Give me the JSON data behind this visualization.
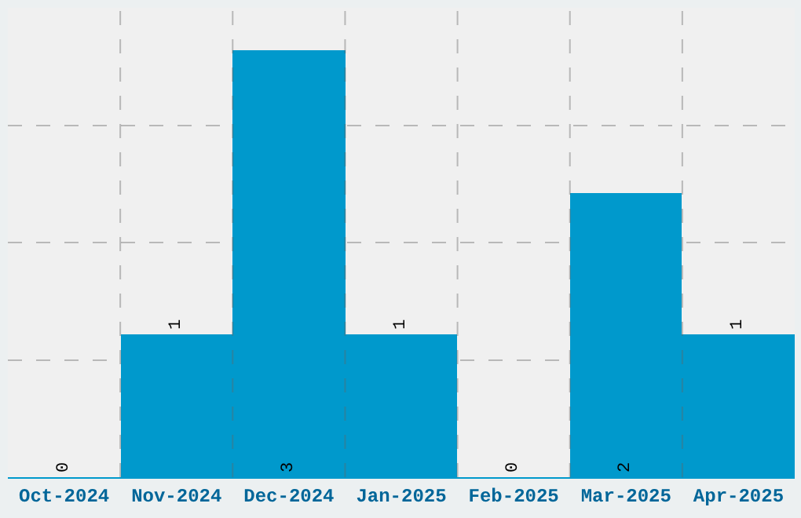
{
  "chart_data": {
    "type": "bar",
    "categories": [
      "Oct-2024",
      "Nov-2024",
      "Dec-2024",
      "Jan-2025",
      "Feb-2025",
      "Mar-2025",
      "Apr-2025"
    ],
    "values": [
      0,
      1,
      3,
      1,
      0,
      2,
      1
    ],
    "color": "#0099cc",
    "ylim": [
      0,
      3.3
    ],
    "yticks": [
      {
        "value": 0.825,
        "label": null
      },
      {
        "value": 1.65,
        "label": null
      },
      {
        "value": 2.475,
        "label": null
      }
    ],
    "tick_labels": "x",
    "grid": true,
    "data_labels": true
  }
}
